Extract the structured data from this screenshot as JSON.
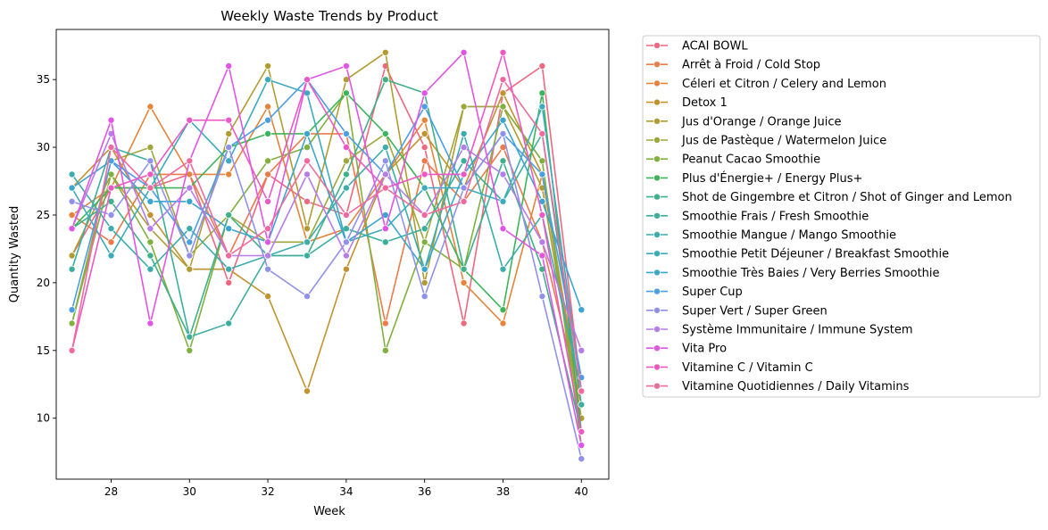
{
  "chart_data": {
    "type": "line",
    "title": "Weekly Waste Trends by Product",
    "xlabel": "Week",
    "ylabel": "Quantity Wasted",
    "xlim": [
      26.6,
      40.7
    ],
    "ylim": [
      5.5,
      38.7
    ],
    "xticks": [
      28,
      30,
      32,
      34,
      36,
      38,
      40
    ],
    "yticks": [
      10,
      15,
      20,
      25,
      30,
      35
    ],
    "grid": false,
    "legend_position": "outside-right",
    "x": [
      27,
      28,
      29,
      30,
      31,
      32,
      33,
      34,
      35,
      36,
      37,
      38,
      39,
      40
    ],
    "series": [
      {
        "name": "ACAI BOWL",
        "color": "#f0677f",
        "values": [
          22,
          27,
          27,
          28,
          20,
          28,
          26,
          25,
          36,
          30,
          17,
          34,
          36,
          12
        ]
      },
      {
        "name": "Arrêt à Froid / Cold Stop",
        "color": "#ee7a49",
        "values": [
          25,
          23,
          28,
          28,
          22,
          28,
          31,
          31,
          17,
          29,
          26,
          30,
          23,
          11
        ]
      },
      {
        "name": "Céleri et Citron / Celery and Lemon",
        "color": "#e6843a",
        "values": [
          25,
          27,
          33,
          28,
          28,
          33,
          23,
          24,
          28,
          32,
          20,
          17,
          28,
          11
        ]
      },
      {
        "name": "Detox 1",
        "color": "#c1922d",
        "values": [
          27,
          30,
          25,
          21,
          21,
          19,
          12,
          21,
          28,
          31,
          27,
          34,
          28,
          10
        ]
      },
      {
        "name": "Jus d'Orange / Orange Juice",
        "color": "#b29c32",
        "values": [
          22,
          28,
          24,
          21,
          31,
          36,
          24,
          35,
          37,
          20,
          33,
          33,
          27,
          10
        ]
      },
      {
        "name": "Jus de Pastèque / Watermelon Juice",
        "color": "#9ea73a",
        "values": [
          17,
          29,
          30,
          22,
          25,
          23,
          23,
          29,
          31,
          23,
          33,
          33,
          29,
          9
        ]
      },
      {
        "name": "Peanut Cacao Smoothie",
        "color": "#80b03e",
        "values": [
          17,
          28,
          23,
          15,
          25,
          29,
          30,
          34,
          15,
          23,
          21,
          33,
          29,
          8
        ]
      },
      {
        "name": "Plus d'Énergie+ / Energy Plus+",
        "color": "#3bb55b",
        "values": [
          24,
          27,
          27,
          27,
          30,
          31,
          31,
          34,
          31,
          27,
          21,
          18,
          34,
          9
        ]
      },
      {
        "name": "Shot de Gingembre et Citron / Shot of Ginger and Lemon",
        "color": "#3eb08a",
        "values": [
          24,
          26,
          22,
          16,
          25,
          22,
          22,
          28,
          35,
          34,
          21,
          29,
          21,
          9
        ]
      },
      {
        "name": "Smoothie Frais / Fresh Smoothie",
        "color": "#3cae9e",
        "values": [
          21,
          30,
          29,
          16,
          17,
          22,
          22,
          24,
          23,
          24,
          29,
          26,
          31,
          11
        ]
      },
      {
        "name": "Smoothie Mangue / Mango Smoothie",
        "color": "#3cacad",
        "values": [
          28,
          24,
          21,
          24,
          21,
          22,
          23,
          27,
          30,
          21,
          31,
          21,
          25,
          12
        ]
      },
      {
        "name": "Smoothie Petit Déjeuner / Breakfast Smoothie",
        "color": "#3babbe",
        "values": [
          27,
          22,
          27,
          32,
          29,
          35,
          34,
          23,
          24,
          27,
          27,
          26,
          33,
          12
        ]
      },
      {
        "name": "Smoothie Très Baies / Very Berries Smoothie",
        "color": "#3aa5cf",
        "values": [
          27,
          29,
          26,
          26,
          24,
          23,
          31,
          23,
          25,
          21,
          28,
          32,
          26,
          18
        ]
      },
      {
        "name": "Super Cup",
        "color": "#4a9ee6",
        "values": [
          18,
          29,
          27,
          23,
          30,
          32,
          35,
          31,
          28,
          33,
          27,
          31,
          28,
          13
        ]
      },
      {
        "name": "Super Vert / Super Green",
        "color": "#9191eb",
        "values": [
          26,
          25,
          29,
          22,
          30,
          21,
          19,
          23,
          29,
          19,
          27,
          31,
          19,
          7
        ]
      },
      {
        "name": "Système Immunitaire / Immune System",
        "color": "#b57cea",
        "values": [
          24,
          31,
          24,
          27,
          22,
          22,
          28,
          22,
          28,
          25,
          30,
          28,
          23,
          15
        ]
      },
      {
        "name": "Vita Pro",
        "color": "#e255e4",
        "values": [
          24,
          32,
          17,
          29,
          36,
          23,
          35,
          36,
          24,
          34,
          37,
          24,
          22,
          8
        ]
      },
      {
        "name": "Vitamine C / Vitamin C",
        "color": "#ee58c5",
        "values": [
          15,
          27,
          28,
          32,
          32,
          26,
          35,
          30,
          27,
          28,
          28,
          37,
          25,
          9
        ]
      },
      {
        "name": "Vitamine Quotidiennes / Daily Vitamins",
        "color": "#f06a9f",
        "values": [
          15,
          30,
          27,
          29,
          22,
          24,
          29,
          25,
          27,
          25,
          26,
          35,
          31,
          12
        ]
      }
    ]
  }
}
